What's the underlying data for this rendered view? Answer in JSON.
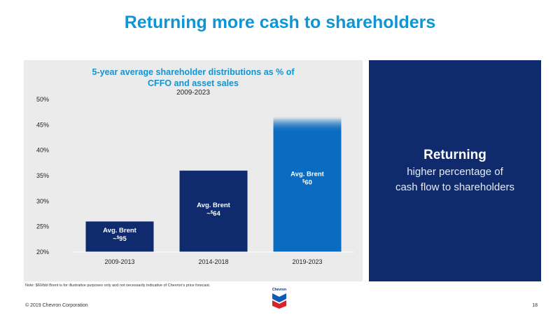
{
  "slide": {
    "title": "Returning more cash to shareholders",
    "note": "Note: $60/bbl Brent is for illustrative purposes only and not necessarily indicative of Chevron's price forecast.",
    "copyright": "© 2019 Chevron Corporation",
    "page_number": "18",
    "logo_text": "Chevron"
  },
  "right_panel": {
    "heading": "Returning",
    "line1": "higher percentage of",
    "line2": "cash flow to shareholders"
  },
  "chart_data": {
    "type": "bar",
    "title_lines": [
      "5-year average shareholder distributions as % of",
      "CFFO and asset sales"
    ],
    "subtitle": "2009-2023",
    "xlabel": "",
    "ylabel": "",
    "categories": [
      "2009-2013",
      "2014-2018",
      "2019-2023"
    ],
    "values": [
      26,
      36,
      46.5
    ],
    "ylim": [
      20,
      50
    ],
    "yticks": [
      "20%",
      "25%",
      "30%",
      "35%",
      "40%",
      "45%",
      "50%"
    ],
    "ytick_values": [
      20,
      25,
      30,
      35,
      40,
      45,
      50
    ],
    "grid": false,
    "bar_colors": [
      "#0f2b6d",
      "#0f2b6d",
      "#0a6cc0"
    ],
    "bar_top_fade": [
      false,
      false,
      true
    ],
    "bar_labels": [
      {
        "line1": "Avg. Brent",
        "line2_prefix": "~",
        "currency": "$",
        "amount": "95"
      },
      {
        "line1": "Avg. Brent",
        "line2_prefix": "~",
        "currency": "$",
        "amount": "64"
      },
      {
        "line1": "Avg. Brent",
        "line2_prefix": "",
        "currency": "$",
        "amount": "60"
      }
    ]
  }
}
